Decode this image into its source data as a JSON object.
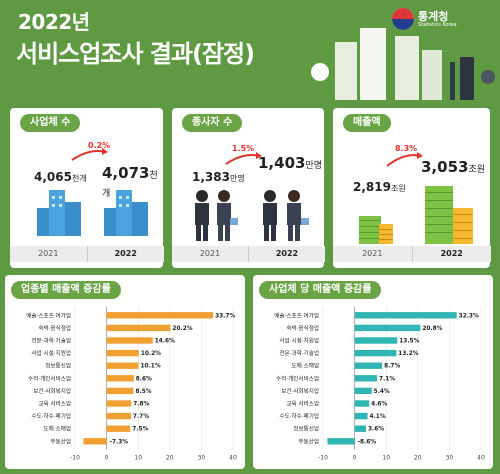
{
  "header": {
    "year": "2022년",
    "title": "서비스업조사 결과(잠정)",
    "logo_name": "통계청",
    "logo_sub": "Statistics Korea"
  },
  "summary": [
    {
      "label": "사업체 수",
      "pct": "0.2%",
      "y1": "2021",
      "y2": "2022",
      "v1": "4,065",
      "u1": "천개",
      "v2": "4,073",
      "u2": "천개"
    },
    {
      "label": "종사자 수",
      "pct": "1.5%",
      "y1": "2021",
      "y2": "2022",
      "v1": "1,383",
      "u1": "만명",
      "v2": "1,403",
      "u2": "만명"
    },
    {
      "label": "매출액",
      "pct": "8.3%",
      "y1": "2021",
      "y2": "2022",
      "v1": "2,819",
      "u1": "조원",
      "v2": "3,053",
      "u2": "조원"
    }
  ],
  "chart_data": [
    {
      "type": "bar",
      "orientation": "horizontal",
      "title": "업종별 매출액 증감률",
      "color": "#f0a030",
      "categories": [
        "예술·스포츠·여가업",
        "숙박·음식점업",
        "전문·과학·기술업",
        "사업 시설·지원업",
        "정보통신업",
        "수리·개인서비스업",
        "보건·사회복지업",
        "교육 서비스업",
        "수도·하수·폐기업",
        "도매·소매업",
        "부동산업"
      ],
      "values": [
        33.7,
        20.2,
        14.6,
        10.2,
        10.1,
        8.6,
        8.5,
        7.8,
        7.7,
        7.5,
        -7.3
      ],
      "value_labels": [
        "33.7%",
        "20.2%",
        "14.6%",
        "10.2%",
        "10.1%",
        "8.6%",
        "8.5%",
        "7.8%",
        "7.7%",
        "7.5%",
        "-7.3%"
      ],
      "xlim": [
        -10,
        40
      ],
      "ticks": [
        -10,
        0,
        10,
        20,
        30,
        40
      ],
      "tick_labels": [
        "-10",
        "0",
        "10",
        "20",
        "30",
        "40"
      ]
    },
    {
      "type": "bar",
      "orientation": "horizontal",
      "title": "사업체 당 매출액 증감률",
      "color": "#2fb6b3",
      "categories": [
        "예술·스포츠·여가업",
        "숙박·음식점업",
        "사업 시설·지원업",
        "전문·과학·기술업",
        "도매·소매업",
        "수리·개인서비스업",
        "보건·사회복지업",
        "교육 서비스업",
        "수도·하수·폐기업",
        "정보통신업",
        "부동산업"
      ],
      "values": [
        32.3,
        20.8,
        13.5,
        13.2,
        8.7,
        7.1,
        5.4,
        4.6,
        4.1,
        3.6,
        -8.6
      ],
      "value_labels": [
        "32.3%",
        "20.8%",
        "13.5%",
        "13.2%",
        "8.7%",
        "7.1%",
        "5.4%",
        "4.6%",
        "4.1%",
        "3.6%",
        "-8.6%"
      ],
      "xlim": [
        -10,
        40
      ],
      "ticks": [
        -10,
        0,
        10,
        20,
        30,
        40
      ],
      "tick_labels": [
        "-10",
        "0",
        "10",
        "20",
        "30",
        "40"
      ]
    }
  ],
  "colors": {
    "green": "#5f9a43",
    "header_green": "#6aa447",
    "red": "#e3322b",
    "orange": "#f0a030",
    "teal": "#2fb6b3"
  },
  "icons": [
    "statistics-korea-logo",
    "city-building-icon",
    "office-worker-icon",
    "money-stack-icon",
    "coin-stack-icon",
    "trend-arrow-icon"
  ]
}
